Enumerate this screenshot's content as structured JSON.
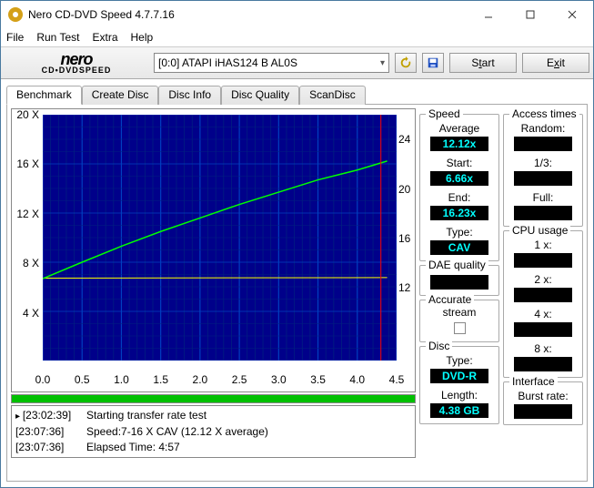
{
  "window": {
    "title": "Nero CD-DVD Speed 4.7.7.16"
  },
  "menu": {
    "file": "File",
    "run_test": "Run Test",
    "extra": "Extra",
    "help": "Help"
  },
  "brand": {
    "nero": "nero",
    "sub_a": "CD•DVD",
    "sub_b": "SPEED"
  },
  "toolbar": {
    "drive": "[0:0]   ATAPI iHAS124   B  AL0S",
    "start_pre": "S",
    "start_u": "t",
    "start_post": "art",
    "exit_pre": "E",
    "exit_u": "x",
    "exit_post": "it"
  },
  "tabs": {
    "benchmark": "Benchmark",
    "create_disc": "Create Disc",
    "disc_info": "Disc Info",
    "disc_quality": "Disc Quality",
    "scandisc": "ScanDisc"
  },
  "chart": {
    "bg": "#00008a",
    "grid_minor": "#002080",
    "grid_major": "#0040c0",
    "speed_line_color": "#00ff00",
    "dae_line_color": "#ffff00",
    "marker_line_color": "#ff0000",
    "left_axis": {
      "ticks": [
        "20 X",
        "16 X",
        "12 X",
        "8 X",
        "4 X"
      ],
      "positions_pct": [
        0,
        20,
        40,
        60,
        80
      ]
    },
    "right_axis": {
      "ticks": [
        "24",
        "20",
        "16",
        "12"
      ],
      "positions_pct": [
        10,
        30,
        50,
        70
      ]
    },
    "bottom_axis": {
      "ticks": [
        "0.0",
        "0.5",
        "1.0",
        "1.5",
        "2.0",
        "2.5",
        "3.0",
        "3.5",
        "4.0",
        "4.5"
      ],
      "count": 10
    },
    "speed_series": [
      [
        0,
        6.66
      ],
      [
        0.5,
        8.0
      ],
      [
        1.0,
        9.3
      ],
      [
        1.5,
        10.5
      ],
      [
        2.0,
        11.6
      ],
      [
        2.5,
        12.7
      ],
      [
        3.0,
        13.7
      ],
      [
        3.5,
        14.7
      ],
      [
        4.0,
        15.5
      ],
      [
        4.38,
        16.23
      ]
    ],
    "dae_series": [
      [
        0,
        6.7
      ],
      [
        4.38,
        6.75
      ]
    ],
    "marker_x": 4.3,
    "x_domain": [
      0,
      4.5
    ],
    "y_domain_left": [
      0,
      20
    ]
  },
  "log": {
    "r1": {
      "ts": "[23:02:39]",
      "msg": "Starting transfer rate test"
    },
    "r2": {
      "ts": "[23:07:36]",
      "msg": "Speed:7-16 X CAV (12.12 X average)"
    },
    "r3": {
      "ts": "[23:07:36]",
      "msg": "Elapsed Time: 4:57"
    }
  },
  "panels": {
    "speed": {
      "title": "Speed",
      "avg_l": "Average",
      "avg_v": "12.12x",
      "start_l": "Start:",
      "start_v": "6.66x",
      "end_l": "End:",
      "end_v": "16.23x",
      "type_l": "Type:",
      "type_v": "CAV"
    },
    "dae": {
      "title": "DAE quality",
      "val": ""
    },
    "accurate": {
      "title": "Accurate",
      "sub": "stream"
    },
    "disc": {
      "title": "Disc",
      "type_l": "Type:",
      "type_v": "DVD-R",
      "len_l": "Length:",
      "len_v": "4.38 GB"
    },
    "access": {
      "title": "Access times",
      "rand_l": "Random:",
      "third_l": "1/3:",
      "full_l": "Full:"
    },
    "cpu": {
      "title": "CPU usage",
      "l1": "1 x:",
      "l2": "2 x:",
      "l4": "4 x:",
      "l8": "8 x:"
    },
    "iface": {
      "title": "Interface",
      "burst_l": "Burst rate:"
    }
  },
  "colors": {
    "value_fg": "#03ffff",
    "value_bg": "#000000",
    "progress": "#00c000"
  }
}
